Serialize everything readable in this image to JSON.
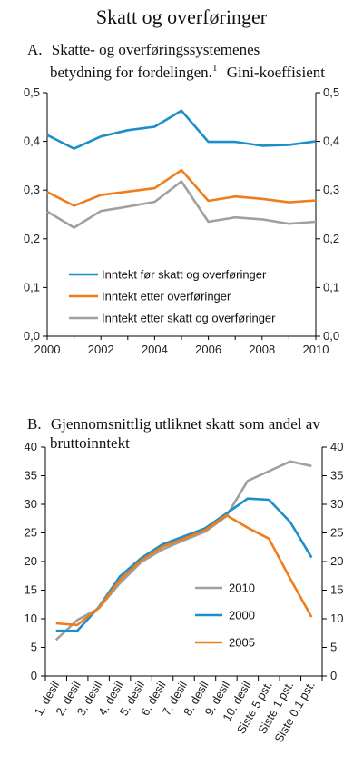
{
  "title": "Skatt og overføringer",
  "chart_data": [
    {
      "type": "line",
      "title_prefix": "A.",
      "title_line1": "Skatte- og overføringssystemenes",
      "title_line2": "betydning for fordelingen.",
      "title_sup": "1",
      "title_tail": "Gini-koeffisient",
      "x": [
        2000,
        2001,
        2002,
        2003,
        2004,
        2005,
        2006,
        2007,
        2008,
        2009,
        2010
      ],
      "xticks": [
        "2000",
        "2002",
        "2004",
        "2006",
        "2008",
        "2010"
      ],
      "xlim": [
        2000,
        2010
      ],
      "ylim": [
        0,
        0.5
      ],
      "yticks": [
        "0,0",
        "0,1",
        "0,2",
        "0,3",
        "0,4",
        "0,5"
      ],
      "grid": false,
      "legend": "bottom-center",
      "series": [
        {
          "name": "Inntekt før skatt og overføringer",
          "color": "#1a8fc9",
          "values": [
            0.413,
            0.385,
            0.41,
            0.423,
            0.43,
            0.463,
            0.399,
            0.399,
            0.391,
            0.393,
            0.4
          ]
        },
        {
          "name": "Inntekt etter overføringer",
          "color": "#f07d1b",
          "values": [
            0.296,
            0.268,
            0.29,
            0.297,
            0.304,
            0.341,
            0.278,
            0.287,
            0.282,
            0.275,
            0.279
          ]
        },
        {
          "name": "Inntekt etter skatt og overføringer",
          "color": "#a0a0a0",
          "values": [
            0.256,
            0.223,
            0.257,
            0.266,
            0.276,
            0.318,
            0.235,
            0.244,
            0.24,
            0.231,
            0.235
          ]
        }
      ]
    },
    {
      "type": "line",
      "title_prefix": "B.",
      "title_line1": "Gjennomsnittlig utliknet skatt som andel av",
      "title_line2": "bruttoinntekt",
      "categories": [
        "1. desil",
        "2. desil",
        "3. desil",
        "4. desil",
        "5. desil",
        "6. desil",
        "7. desil",
        "8. desil",
        "9. desil",
        "10. desil",
        "Siste 5 pst.",
        "Siste 1 pst.",
        "Siste 0,1 pst."
      ],
      "ylim": [
        0,
        40
      ],
      "yticks": [
        "0",
        "5",
        "10",
        "15",
        "20",
        "25",
        "30",
        "35",
        "40"
      ],
      "grid": false,
      "legend": "center-right",
      "series": [
        {
          "name": "2010",
          "color": "#a0a0a0",
          "values": [
            6.3,
            9.8,
            11.8,
            16.2,
            19.9,
            22.1,
            23.7,
            25.2,
            27.9,
            34.1,
            35.8,
            37.5,
            36.7
          ]
        },
        {
          "name": "2000",
          "color": "#1a8fc9",
          "values": [
            7.9,
            7.9,
            12.0,
            17.4,
            20.6,
            23.0,
            24.4,
            25.8,
            28.4,
            31.0,
            30.8,
            26.9,
            20.7
          ]
        },
        {
          "name": "2005",
          "color": "#f07d1b",
          "values": [
            9.2,
            8.9,
            11.9,
            16.8,
            20.2,
            22.6,
            24.0,
            25.5,
            28.1,
            25.9,
            24.0,
            17.0,
            10.3
          ]
        }
      ]
    }
  ]
}
